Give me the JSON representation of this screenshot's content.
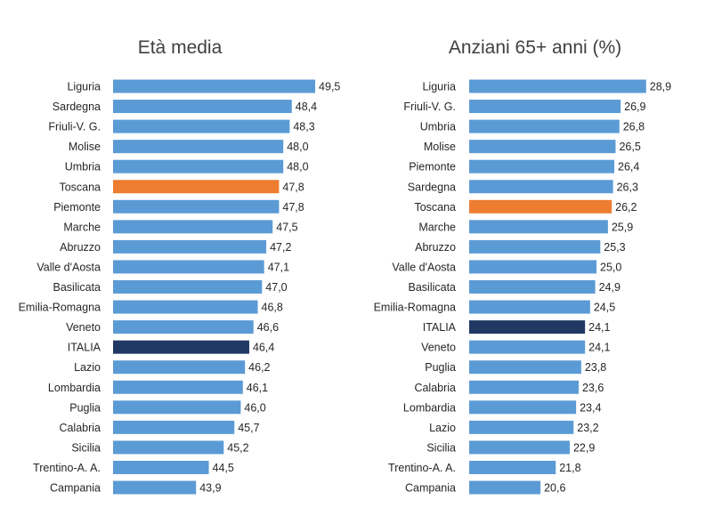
{
  "colors": {
    "bar": "#5b9bd5",
    "highlight": "#ed7d31",
    "national": "#203864",
    "text": "#262626",
    "title": "#404040"
  },
  "chart_data": [
    {
      "type": "bar",
      "orientation": "horizontal",
      "title": "Età media",
      "xlim": [
        40,
        50
      ],
      "categories": [
        "Liguria",
        "Sardegna",
        "Friuli-V. G.",
        "Molise",
        "Umbria",
        "Toscana",
        "Piemonte",
        "Marche",
        "Abruzzo",
        "Valle d'Aosta",
        "Basilicata",
        "Emilia-Romagna",
        "Veneto",
        "ITALIA",
        "Lazio",
        "Lombardia",
        "Puglia",
        "Calabria",
        "Sicilia",
        "Trentino-A. A.",
        "Campania"
      ],
      "values": [
        49.5,
        48.4,
        48.3,
        48.0,
        48.0,
        47.8,
        47.8,
        47.5,
        47.2,
        47.1,
        47.0,
        46.8,
        46.6,
        46.4,
        46.2,
        46.1,
        46.0,
        45.7,
        45.2,
        44.5,
        43.9
      ],
      "labels": [
        "49,5",
        "48,4",
        "48,3",
        "48,0",
        "48,0",
        "47,8",
        "47,8",
        "47,5",
        "47,2",
        "47,1",
        "47,0",
        "46,8",
        "46,6",
        "46,4",
        "46,2",
        "46,1",
        "46,0",
        "45,7",
        "45,2",
        "44,5",
        "43,9"
      ],
      "highlight": {
        "Toscana": "highlight",
        "ITALIA": "national"
      }
    },
    {
      "type": "bar",
      "orientation": "horizontal",
      "title": "Anziani 65+ anni (%)",
      "xlim": [
        15,
        30
      ],
      "categories": [
        "Liguria",
        "Friuli-V. G.",
        "Umbria",
        "Molise",
        "Piemonte",
        "Sardegna",
        "Toscana",
        "Marche",
        "Abruzzo",
        "Valle d'Aosta",
        "Basilicata",
        "Emilia-Romagna",
        "ITALIA",
        "Veneto",
        "Puglia",
        "Calabria",
        "Lombardia",
        "Lazio",
        "Sicilia",
        "Trentino-A. A.",
        "Campania"
      ],
      "values": [
        28.9,
        26.9,
        26.8,
        26.5,
        26.4,
        26.3,
        26.2,
        25.9,
        25.3,
        25.0,
        24.9,
        24.5,
        24.1,
        24.1,
        23.8,
        23.6,
        23.4,
        23.2,
        22.9,
        21.8,
        20.6
      ],
      "labels": [
        "28,9",
        "26,9",
        "26,8",
        "26,5",
        "26,4",
        "26,3",
        "26,2",
        "25,9",
        "25,3",
        "25,0",
        "24,9",
        "24,5",
        "24,1",
        "24,1",
        "23,8",
        "23,6",
        "23,4",
        "23,2",
        "22,9",
        "21,8",
        "20,6"
      ],
      "highlight": {
        "Toscana": "highlight",
        "ITALIA": "national"
      }
    }
  ]
}
